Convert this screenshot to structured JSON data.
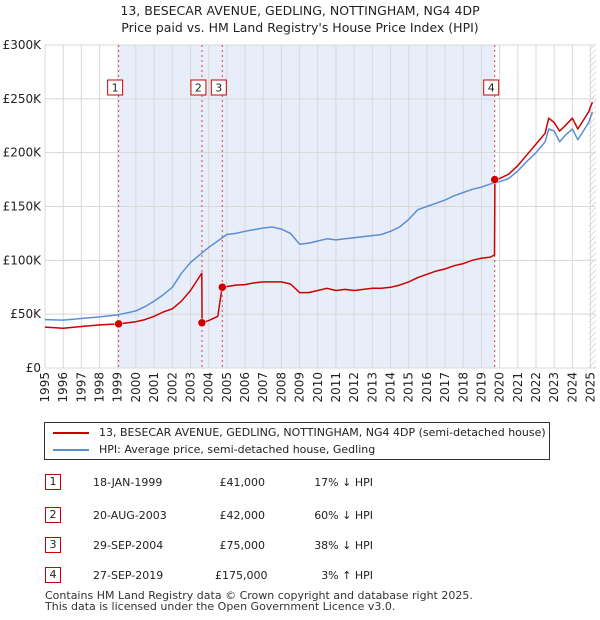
{
  "chart_data": {
    "type": "line",
    "title": "13, BESECAR AVENUE, GEDLING, NOTTINGHAM, NG4 4DP",
    "subtitle": "Price paid vs. HM Land Registry's House Price Index (HPI)",
    "xlabel": "",
    "ylabel": "",
    "xlim": [
      1995.0,
      2025.3
    ],
    "ylim": [
      0,
      300000
    ],
    "x_ticks": [
      "1995",
      "1996",
      "1997",
      "1998",
      "1999",
      "2000",
      "2001",
      "2002",
      "2003",
      "2004",
      "2005",
      "2006",
      "2007",
      "2008",
      "2009",
      "2010",
      "2011",
      "2012",
      "2013",
      "2014",
      "2015",
      "2016",
      "2017",
      "2018",
      "2019",
      "2020",
      "2021",
      "2022",
      "2023",
      "2024",
      "2025"
    ],
    "y_ticks": [
      {
        "value": 0,
        "label": "£0"
      },
      {
        "value": 50000,
        "label": "£50K"
      },
      {
        "value": 100000,
        "label": "£100K"
      },
      {
        "value": 150000,
        "label": "£150K"
      },
      {
        "value": 200000,
        "label": "£200K"
      },
      {
        "value": 250000,
        "label": "£250K"
      },
      {
        "value": 300000,
        "label": "£300K"
      }
    ],
    "grid": true,
    "series": [
      {
        "name": "13, BESECAR AVENUE, GEDLING, NOTTINGHAM, NG4 4DP (semi-detached house)",
        "color": "#cc0000",
        "x": [
          1995.0,
          1996.0,
          1997.0,
          1998.0,
          1999.05,
          2000.0,
          2000.5,
          2001.0,
          2001.5,
          2002.0,
          2002.5,
          2003.0,
          2003.5,
          2003.62,
          2003.64,
          2004.0,
          2004.5,
          2004.74,
          2004.76,
          2005.5,
          2006.0,
          2006.5,
          2007.0,
          2007.5,
          2008.0,
          2008.5,
          2009.0,
          2009.5,
          2010.0,
          2010.5,
          2011.0,
          2011.5,
          2012.0,
          2012.5,
          2013.0,
          2013.5,
          2014.0,
          2014.5,
          2015.0,
          2015.5,
          2016.0,
          2016.5,
          2017.0,
          2017.5,
          2018.0,
          2018.5,
          2019.0,
          2019.5,
          2019.72,
          2019.74,
          2020.0,
          2020.5,
          2021.0,
          2021.5,
          2022.0,
          2022.5,
          2022.7,
          2023.0,
          2023.3,
          2023.6,
          2024.0,
          2024.3,
          2024.6,
          2024.9,
          2025.1
        ],
        "values": [
          38000,
          37000,
          38500,
          40000,
          41000,
          43000,
          45000,
          48000,
          52000,
          55000,
          62000,
          72000,
          85000,
          88000,
          42000,
          44000,
          48000,
          75000,
          75000,
          77000,
          77500,
          79000,
          80000,
          80000,
          80000,
          78000,
          70000,
          70000,
          72000,
          74000,
          72000,
          73000,
          72000,
          73000,
          74000,
          74000,
          75000,
          77000,
          80000,
          84000,
          87000,
          90000,
          92000,
          95000,
          97000,
          100000,
          102000,
          103000,
          105000,
          175000,
          176000,
          180000,
          188000,
          198000,
          208000,
          218000,
          232000,
          228000,
          220000,
          225000,
          232000,
          222000,
          230000,
          238000,
          247000
        ]
      },
      {
        "name": "HPI: Average price, semi-detached house, Gedling",
        "color": "#5b8fd4",
        "x": [
          1995.0,
          1996.0,
          1997.0,
          1998.0,
          1999.05,
          2000.0,
          2000.5,
          2001.0,
          2001.5,
          2002.0,
          2002.5,
          2003.0,
          2003.5,
          2004.0,
          2004.5,
          2005.0,
          2005.5,
          2006.0,
          2006.5,
          2007.0,
          2007.5,
          2008.0,
          2008.5,
          2009.0,
          2009.5,
          2010.0,
          2010.5,
          2011.0,
          2011.5,
          2012.0,
          2012.5,
          2013.0,
          2013.5,
          2014.0,
          2014.5,
          2015.0,
          2015.5,
          2016.0,
          2016.5,
          2017.0,
          2017.5,
          2018.0,
          2018.5,
          2019.0,
          2019.5,
          2019.74,
          2020.0,
          2020.5,
          2021.0,
          2021.5,
          2022.0,
          2022.5,
          2022.7,
          2023.0,
          2023.3,
          2023.6,
          2024.0,
          2024.3,
          2024.6,
          2024.9,
          2025.1
        ],
        "values": [
          45000,
          44500,
          46000,
          47500,
          49500,
          53000,
          57000,
          62000,
          68000,
          75000,
          88000,
          98000,
          105000,
          112000,
          118000,
          124000,
          125000,
          127000,
          128500,
          130000,
          131000,
          129000,
          125000,
          115000,
          116000,
          118000,
          120000,
          119000,
          120000,
          121000,
          122000,
          123000,
          124000,
          127000,
          131000,
          138000,
          147000,
          150000,
          153000,
          156000,
          160000,
          163000,
          166000,
          168000,
          171000,
          172000,
          173000,
          176000,
          183000,
          192000,
          200000,
          210000,
          222000,
          220000,
          210000,
          216000,
          222000,
          212000,
          220000,
          228000,
          238000
        ]
      }
    ],
    "transactions": [
      {
        "label": "1",
        "x": 1999.05,
        "price": 41000,
        "date": "18-JAN-1999",
        "price_text": "£41,000",
        "hpi_text": "17% ↓ HPI"
      },
      {
        "label": "2",
        "x": 2003.63,
        "price": 42000,
        "date": "20-AUG-2003",
        "price_text": "£42,000",
        "hpi_text": "60% ↓ HPI"
      },
      {
        "label": "3",
        "x": 2004.75,
        "price": 75000,
        "date": "29-SEP-2004",
        "price_text": "£75,000",
        "hpi_text": "38% ↓ HPI"
      },
      {
        "label": "4",
        "x": 2019.73,
        "price": 175000,
        "date": "27-SEP-2019",
        "price_text": "£175,000",
        "hpi_text": "3% ↑ HPI"
      }
    ]
  },
  "footer": {
    "line1": "Contains HM Land Registry data © Crown copyright and database right 2025.",
    "line2": "This data is licensed under the Open Government Licence v3.0."
  }
}
